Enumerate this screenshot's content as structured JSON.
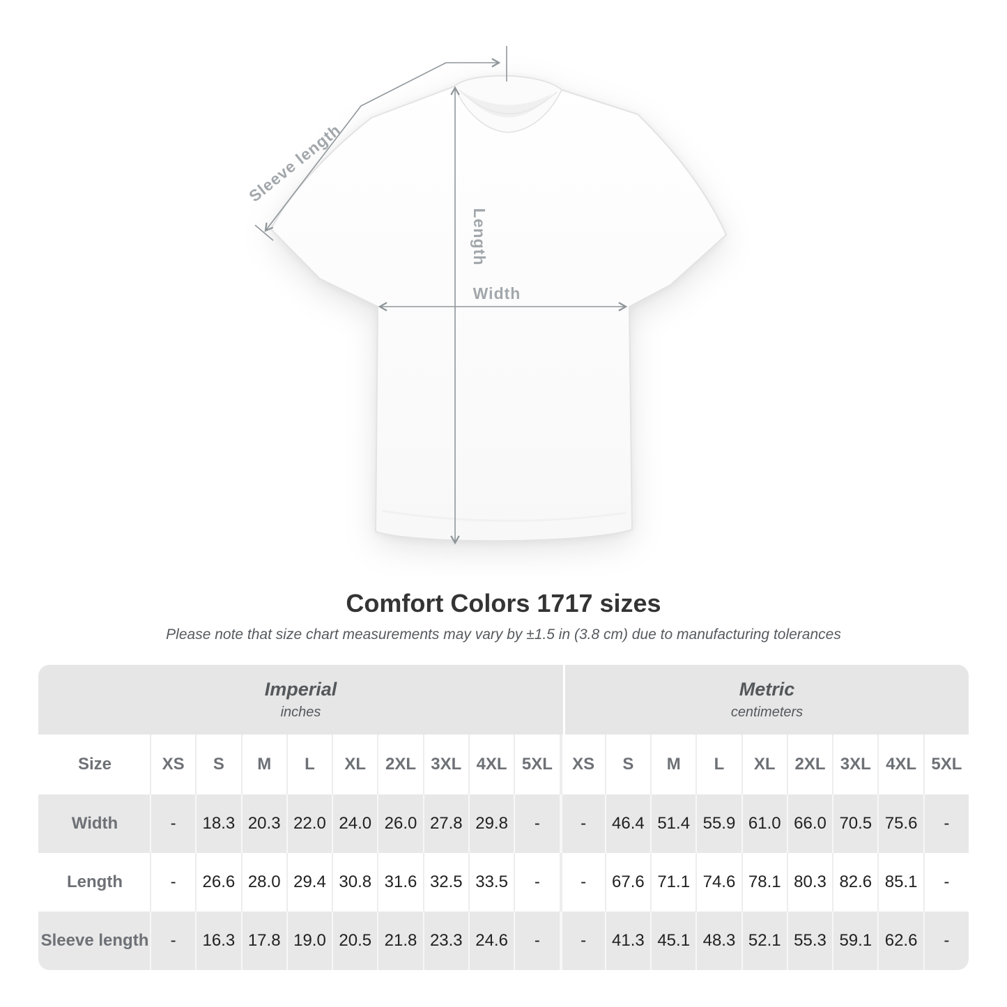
{
  "diagram": {
    "sleeve_label": "Sleeve length",
    "length_label": "Length",
    "width_label": "Width",
    "line_color": "#8f969a",
    "label_color": "#a2a7ab"
  },
  "title": "Comfort Colors 1717 sizes",
  "subtitle": "Please note that size chart measurements may vary by ±1.5 in (3.8 cm) due to manufacturing tolerances",
  "table": {
    "sections": [
      {
        "name": "Imperial",
        "unit": "inches"
      },
      {
        "name": "Metric",
        "unit": "centimeters"
      }
    ],
    "size_header": "Size",
    "sizes": [
      "XS",
      "S",
      "M",
      "L",
      "XL",
      "2XL",
      "3XL",
      "4XL",
      "5XL"
    ],
    "rows": [
      {
        "label": "Width",
        "imperial": [
          "-",
          "18.3",
          "20.3",
          "22.0",
          "24.0",
          "26.0",
          "27.8",
          "29.8",
          "-"
        ],
        "metric": [
          "-",
          "46.4",
          "51.4",
          "55.9",
          "61.0",
          "66.0",
          "70.5",
          "75.6",
          "-"
        ]
      },
      {
        "label": "Length",
        "imperial": [
          "-",
          "26.6",
          "28.0",
          "29.4",
          "30.8",
          "31.6",
          "32.5",
          "33.5",
          "-"
        ],
        "metric": [
          "-",
          "67.6",
          "71.1",
          "74.6",
          "78.1",
          "80.3",
          "82.6",
          "85.1",
          "-"
        ]
      },
      {
        "label": "Sleeve length",
        "imperial": [
          "-",
          "16.3",
          "17.8",
          "19.0",
          "20.5",
          "21.8",
          "23.3",
          "24.6",
          "-"
        ],
        "metric": [
          "-",
          "41.3",
          "45.1",
          "48.3",
          "52.1",
          "55.3",
          "59.1",
          "62.6",
          "-"
        ]
      }
    ],
    "colors": {
      "row_shade": "#e8e8e8",
      "banner": "#e6e6e6",
      "label_text": "#6d7176",
      "value_text": "#212121"
    }
  }
}
